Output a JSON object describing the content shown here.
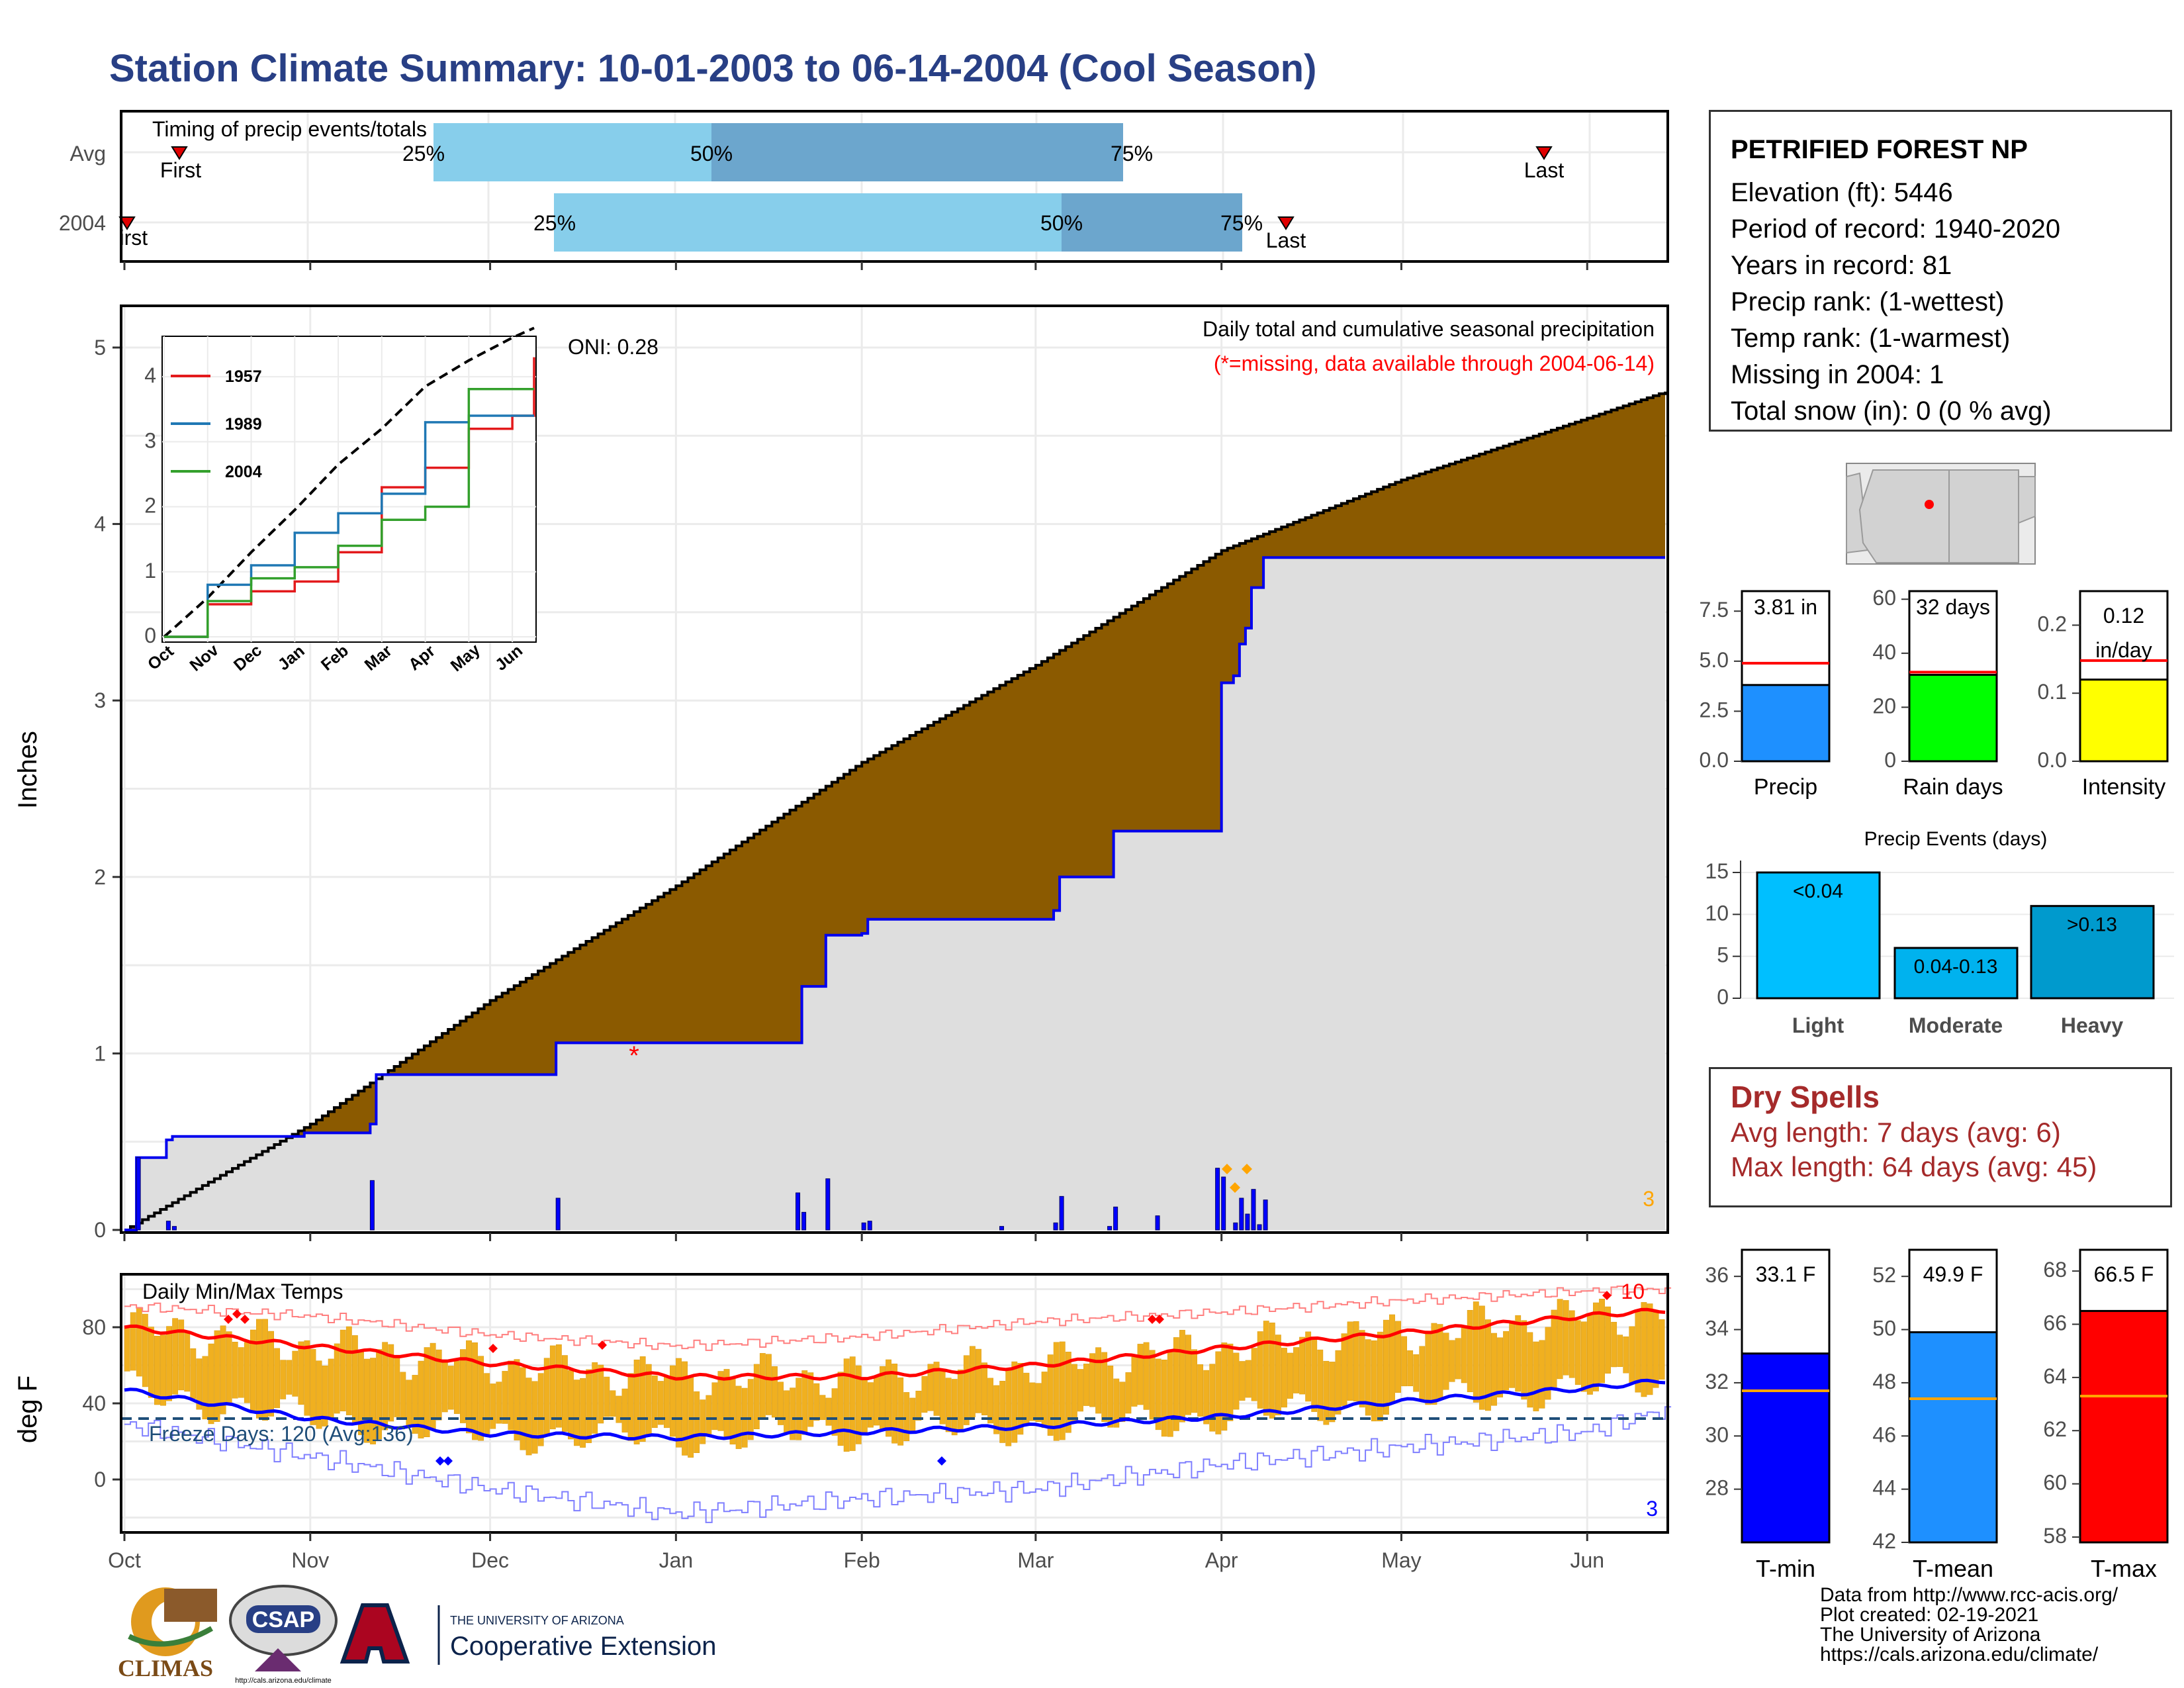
{
  "title": "Station Climate Summary: 10-01-2003 to 06-14-2004 (Cool Season)",
  "timing_panel": {
    "title": "Timing of precip events/totals",
    "rows": [
      {
        "label": "Avg",
        "first_label": "First",
        "last_label": "Last",
        "p25": "25%",
        "p50": "50%",
        "p75": "75%"
      },
      {
        "label": "2004",
        "first_label": "First",
        "last_label": "Last",
        "p25": "25%",
        "p50": "50%",
        "p75": "75%"
      }
    ]
  },
  "precip_panel": {
    "ylabel": "Inches",
    "title_line1": "Daily total and cumulative seasonal precipitation",
    "title_line2": "(*=missing, data available through 2004-06-14)",
    "oni": "ONI: 0.28",
    "missing_marker": "*",
    "corner_count": "3",
    "y_ticks": [
      "0",
      "1",
      "2",
      "3",
      "4",
      "5"
    ]
  },
  "inset": {
    "legend": [
      "1957",
      "1989",
      "2004"
    ],
    "y_ticks": [
      "0",
      "1",
      "2",
      "3",
      "4"
    ],
    "x_ticks": [
      "Oct",
      "Nov",
      "Dec",
      "Jan",
      "Feb",
      "Mar",
      "Apr",
      "May",
      "Jun"
    ]
  },
  "temp_panel": {
    "ylabel": "deg F",
    "title": "Daily Min/Max Temps",
    "freeze_label": "Freeze Days: 120 (Avg:136)",
    "max_record_count": "10",
    "min_record_count": "3",
    "y_ticks": [
      "0",
      "40",
      "80"
    ]
  },
  "x_months": [
    "Oct",
    "Nov",
    "Dec",
    "Jan",
    "Feb",
    "Mar",
    "Apr",
    "May",
    "Jun"
  ],
  "station": {
    "name": "PETRIFIED FOREST NP",
    "lines": [
      "Elevation (ft): 5446",
      "Period of record: 1940-2020",
      "Years in record: 81",
      "Precip rank:  (1-wettest)",
      "Temp rank:  (1-warmest)",
      "Missing in 2004: 1",
      "Total snow (in): 0 (0 % avg)"
    ]
  },
  "mini_bars": {
    "precip": {
      "label": "Precip",
      "value_text": "3.81 in",
      "value": 3.81,
      "avg": 4.9,
      "max": 8.5,
      "ticks": [
        "0.0",
        "2.5",
        "5.0",
        "7.5"
      ],
      "color": "#1e90ff"
    },
    "rain_days": {
      "label": "Rain days",
      "value_text": "32 days",
      "value": 32,
      "avg": 33,
      "max": 63,
      "ticks": [
        "0",
        "20",
        "40",
        "60"
      ],
      "color": "#00ff00"
    },
    "intensity": {
      "label": "Intensity",
      "value_text_1": "0.12",
      "value_text_2": "in/day",
      "value": 0.12,
      "avg": 0.148,
      "max": 0.25,
      "ticks": [
        "0.0",
        "0.1",
        "0.2"
      ],
      "color": "#ffff00"
    }
  },
  "precip_events": {
    "title": "Precip Events (days)",
    "categories": [
      "Light",
      "Moderate",
      "Heavy"
    ],
    "bar_labels": [
      "<0.04",
      "0.04-0.13",
      ">0.13"
    ],
    "values": [
      15,
      6,
      11
    ],
    "ticks": [
      "0",
      "5",
      "10",
      "15"
    ],
    "colors": [
      "#00bfff",
      "#00b2ee",
      "#009acd"
    ]
  },
  "dry_spells": {
    "title": "Dry Spells",
    "avg_line": "Avg length: 7 days (avg: 6)",
    "max_line": "Max length: 64 days (avg: 45)"
  },
  "temp_bars": {
    "tmin": {
      "label": "T-min",
      "value_text": "33.1 F",
      "value": 33.1,
      "avg": 31.7,
      "min": 26,
      "max": 37,
      "ticks": [
        "28",
        "30",
        "32",
        "34",
        "36"
      ],
      "color": "#0000ff"
    },
    "tmean": {
      "label": "T-mean",
      "value_text": "49.9 F",
      "value": 49.9,
      "avg": 47.4,
      "min": 42,
      "max": 53,
      "ticks": [
        "42",
        "44",
        "46",
        "48",
        "50",
        "52"
      ],
      "color": "#1e90ff"
    },
    "tmax": {
      "label": "T-max",
      "value_text": "66.5 F",
      "value": 66.5,
      "avg": 63.3,
      "min": 57.8,
      "max": 68.8,
      "ticks": [
        "58",
        "60",
        "62",
        "64",
        "66",
        "68"
      ],
      "color": "#ff0000"
    }
  },
  "credits": [
    "Data from http://www.rcc-acis.org/",
    "Plot created: 02-19-2021",
    "The University of Arizona",
    "https://cals.arizona.edu/climate/"
  ],
  "logos": {
    "climas": "CLIMAS",
    "csap": "CSAP",
    "csap_url": "http://cals.arizona.edu/climate",
    "ua_small": "THE UNIVERSITY OF ARIZONA",
    "ua_big": "Cooperative Extension"
  },
  "chart_data": [
    {
      "type": "area",
      "name": "cumulative seasonal precipitation",
      "x_unit": "day since 2003-10-01",
      "avg_cumulative": {
        "x": [
          0,
          31,
          61,
          92,
          123,
          152,
          183,
          213,
          244,
          257
        ],
        "y": [
          0.0,
          0.6,
          1.3,
          1.95,
          2.65,
          3.2,
          3.85,
          4.25,
          4.6,
          4.75
        ]
      },
      "observed_2004_cumulative": {
        "x": [
          0,
          2,
          7,
          8,
          30,
          41,
          42,
          71,
          72,
          112,
          113,
          116,
          117,
          123,
          124,
          146,
          155,
          156,
          164,
          165,
          182,
          183,
          185,
          186,
          187,
          188,
          189,
          190,
          257
        ],
        "y": [
          0.0,
          0.41,
          0.51,
          0.53,
          0.55,
          0.6,
          0.88,
          0.88,
          1.06,
          1.06,
          1.38,
          1.38,
          1.67,
          1.68,
          1.76,
          1.76,
          1.81,
          2.0,
          2.0,
          2.26,
          2.26,
          3.1,
          3.14,
          3.32,
          3.41,
          3.64,
          3.64,
          3.81,
          3.81
        ]
      },
      "daily_precip": {
        "x": [
          2,
          7,
          8,
          41,
          72,
          112,
          113,
          117,
          123,
          124,
          146,
          155,
          156,
          164,
          165,
          172,
          182,
          183,
          185,
          186,
          187,
          188,
          189,
          190
        ],
        "y": [
          0.41,
          0.05,
          0.02,
          0.28,
          0.18,
          0.21,
          0.1,
          0.29,
          0.04,
          0.05,
          0.02,
          0.04,
          0.19,
          0.02,
          0.13,
          0.08,
          0.35,
          0.3,
          0.04,
          0.18,
          0.09,
          0.23,
          0.03,
          0.17
        ]
      },
      "missing_day": 88,
      "ylim": [
        0,
        5.2
      ]
    },
    {
      "type": "line",
      "name": "inset cumulative precipitation",
      "x": [
        0,
        1,
        2,
        3,
        4,
        5,
        6,
        7,
        8,
        8.5
      ],
      "ylim": [
        0,
        4.5
      ],
      "series": [
        {
          "name": "1957",
          "values": [
            0.0,
            0.5,
            0.7,
            0.85,
            1.3,
            2.3,
            2.6,
            3.2,
            3.4,
            4.3
          ]
        },
        {
          "name": "1989",
          "values": [
            0.0,
            0.8,
            1.1,
            1.6,
            1.9,
            2.2,
            3.3,
            3.4,
            3.4,
            3.4
          ]
        },
        {
          "name": "2004",
          "values": [
            0.0,
            0.55,
            0.9,
            1.07,
            1.4,
            1.8,
            2.0,
            3.81,
            3.81,
            3.81
          ]
        }
      ],
      "avg_series": [
        0.0,
        0.6,
        1.3,
        1.95,
        2.65,
        3.2,
        3.85,
        4.25,
        4.6,
        4.75
      ]
    },
    {
      "type": "line",
      "name": "daily min/max temperatures",
      "x_unit": "day since 2003-10-01",
      "ylim": [
        -27,
        101
      ],
      "freeze_line": 32,
      "avg_tmax": {
        "x": [
          0,
          31,
          61,
          92,
          123,
          152,
          183,
          213,
          244,
          257
        ],
        "y": [
          80,
          70,
          61,
          54,
          54,
          60,
          69,
          77,
          86,
          89
        ]
      },
      "avg_tmin": {
        "x": [
          0,
          31,
          61,
          92,
          123,
          152,
          183,
          213,
          244,
          257
        ],
        "y": [
          47,
          32,
          24,
          22,
          25,
          28,
          33,
          41,
          48,
          52
        ]
      },
      "record_max": {
        "x": [
          0,
          31,
          61,
          92,
          123,
          152,
          183,
          213,
          244,
          257
        ],
        "y": [
          91,
          86,
          76,
          70,
          75,
          83,
          88,
          94,
          99,
          100
        ]
      },
      "record_min": {
        "x": [
          0,
          31,
          61,
          92,
          123,
          152,
          183,
          213,
          244,
          257
        ],
        "y": [
          29,
          12,
          -5,
          -18,
          -10,
          -5,
          8,
          17,
          25,
          37
        ]
      }
    }
  ]
}
